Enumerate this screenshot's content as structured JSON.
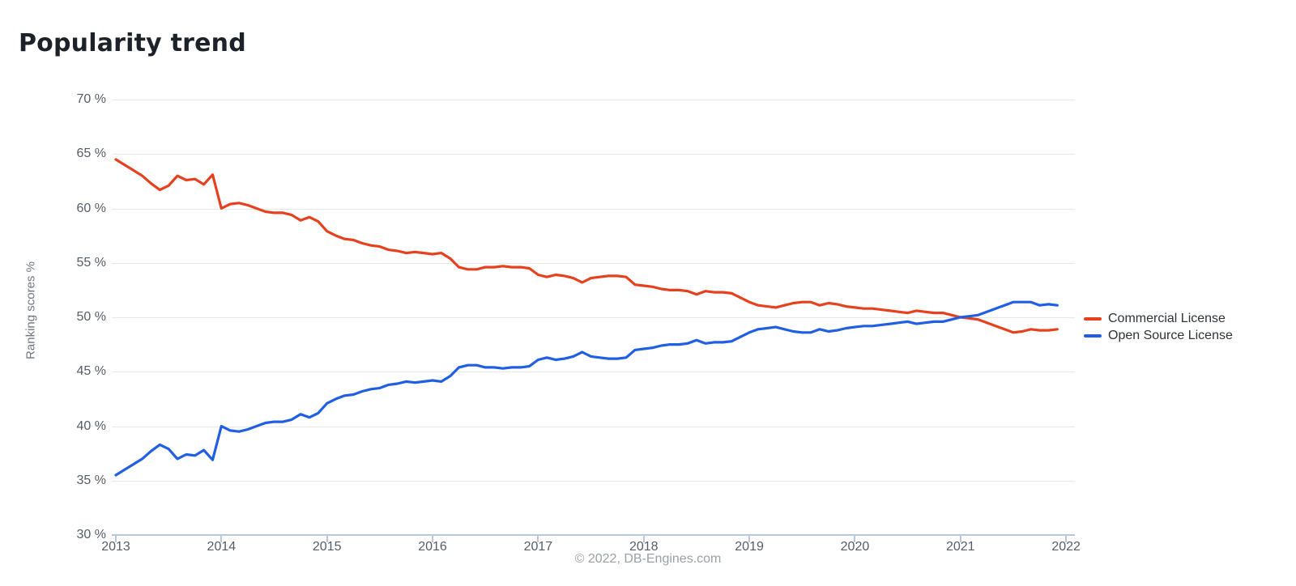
{
  "page": {
    "title": "Popularity trend"
  },
  "footer": {
    "copyright": "© 2022, DB-Engines.com"
  },
  "chart_data": {
    "type": "line",
    "title": "Popularity trend",
    "xlabel": "",
    "ylabel": "Ranking scores %",
    "ylim": [
      30,
      70
    ],
    "ytick_step": 5,
    "ytick_suffix": " %",
    "x_ticks": [
      2013,
      2014,
      2015,
      2016,
      2017,
      2018,
      2019,
      2020,
      2021,
      2022
    ],
    "x_start_year": 2013,
    "x_start_month": 1,
    "points_per_year": 12,
    "grid": "horizontal",
    "legend_position": "right",
    "series": [
      {
        "name": "Commercial License",
        "color": "#e6411e",
        "values": [
          64.5,
          64.0,
          63.5,
          63.0,
          62.3,
          61.7,
          62.1,
          63.0,
          62.6,
          62.7,
          62.2,
          63.1,
          60.0,
          60.4,
          60.5,
          60.3,
          60.0,
          59.7,
          59.6,
          59.6,
          59.4,
          58.9,
          59.2,
          58.8,
          57.9,
          57.5,
          57.2,
          57.1,
          56.8,
          56.6,
          56.5,
          56.2,
          56.1,
          55.9,
          56.0,
          55.9,
          55.8,
          55.9,
          55.4,
          54.6,
          54.4,
          54.4,
          54.6,
          54.6,
          54.7,
          54.6,
          54.6,
          54.5,
          53.9,
          53.7,
          53.9,
          53.8,
          53.6,
          53.2,
          53.6,
          53.7,
          53.8,
          53.8,
          53.7,
          53.0,
          52.9,
          52.8,
          52.6,
          52.5,
          52.5,
          52.4,
          52.1,
          52.4,
          52.3,
          52.3,
          52.2,
          51.8,
          51.4,
          51.1,
          51.0,
          50.9,
          51.1,
          51.3,
          51.4,
          51.4,
          51.1,
          51.3,
          51.2,
          51.0,
          50.9,
          50.8,
          50.8,
          50.7,
          50.6,
          50.5,
          50.4,
          50.6,
          50.5,
          50.4,
          50.4,
          50.2,
          50.0,
          49.9,
          49.8,
          49.5,
          49.2,
          48.9,
          48.6,
          48.7,
          48.9,
          48.8,
          48.8,
          48.9
        ]
      },
      {
        "name": "Open Source License",
        "color": "#205fe4",
        "values": [
          35.5,
          36.0,
          36.5,
          37.0,
          37.7,
          38.3,
          37.9,
          37.0,
          37.4,
          37.3,
          37.8,
          36.9,
          40.0,
          39.6,
          39.5,
          39.7,
          40.0,
          40.3,
          40.4,
          40.4,
          40.6,
          41.1,
          40.8,
          41.2,
          42.1,
          42.5,
          42.8,
          42.9,
          43.2,
          43.4,
          43.5,
          43.8,
          43.9,
          44.1,
          44.0,
          44.1,
          44.2,
          44.1,
          44.6,
          45.4,
          45.6,
          45.6,
          45.4,
          45.4,
          45.3,
          45.4,
          45.4,
          45.5,
          46.1,
          46.3,
          46.1,
          46.2,
          46.4,
          46.8,
          46.4,
          46.3,
          46.2,
          46.2,
          46.3,
          47.0,
          47.1,
          47.2,
          47.4,
          47.5,
          47.5,
          47.6,
          47.9,
          47.6,
          47.7,
          47.7,
          47.8,
          48.2,
          48.6,
          48.9,
          49.0,
          49.1,
          48.9,
          48.7,
          48.6,
          48.6,
          48.9,
          48.7,
          48.8,
          49.0,
          49.1,
          49.2,
          49.2,
          49.3,
          49.4,
          49.5,
          49.6,
          49.4,
          49.5,
          49.6,
          49.6,
          49.8,
          50.0,
          50.1,
          50.2,
          50.5,
          50.8,
          51.1,
          51.4,
          51.4,
          51.4,
          51.1,
          51.2,
          51.1
        ]
      }
    ]
  }
}
